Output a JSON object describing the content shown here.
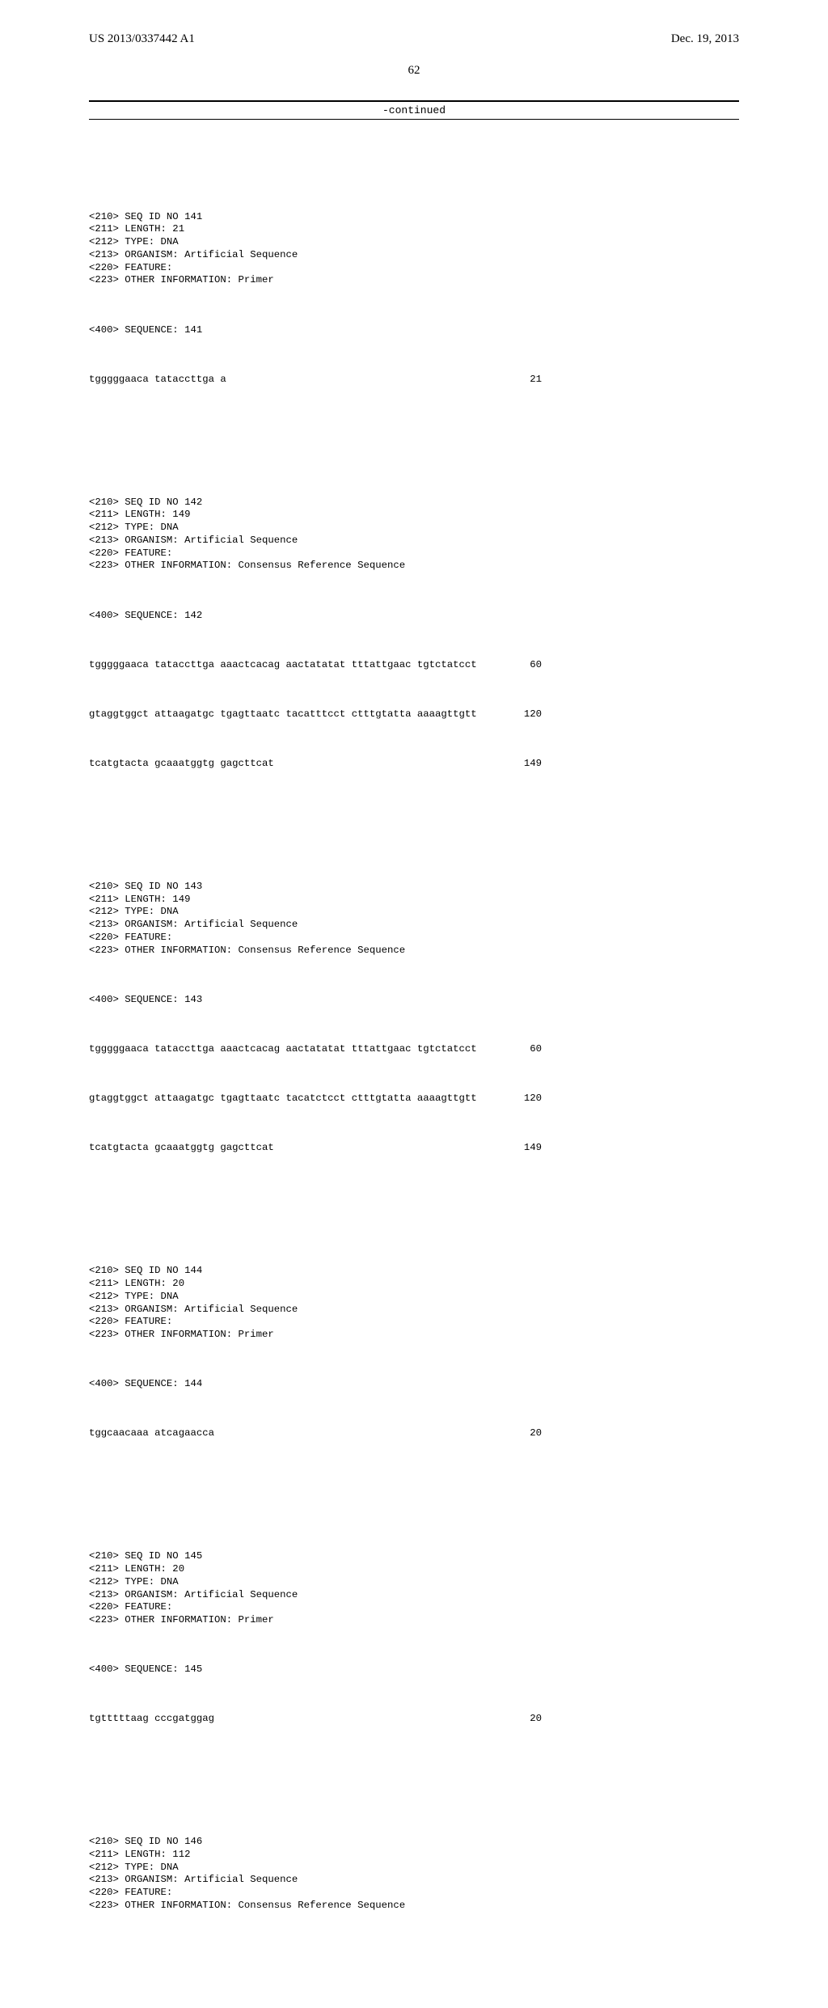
{
  "header": {
    "left": "US 2013/0337442 A1",
    "right": "Dec. 19, 2013"
  },
  "page_number": "62",
  "continued_label": "-continued",
  "entries": [
    {
      "headers": [
        "<210> SEQ ID NO 141",
        "<211> LENGTH: 21",
        "<212> TYPE: DNA",
        "<213> ORGANISM: Artificial Sequence",
        "<220> FEATURE:",
        "<223> OTHER INFORMATION: Primer"
      ],
      "seq_label": "<400> SEQUENCE: 141",
      "lines": [
        {
          "seq": "tgggggaaca tataccttga a",
          "pos": "21"
        }
      ]
    },
    {
      "headers": [
        "<210> SEQ ID NO 142",
        "<211> LENGTH: 149",
        "<212> TYPE: DNA",
        "<213> ORGANISM: Artificial Sequence",
        "<220> FEATURE:",
        "<223> OTHER INFORMATION: Consensus Reference Sequence"
      ],
      "seq_label": "<400> SEQUENCE: 142",
      "lines": [
        {
          "seq": "tgggggaaca tataccttga aaactcacag aactatatat tttattgaac tgtctatcct",
          "pos": "60"
        },
        {
          "seq": "gtaggtggct attaagatgc tgagttaatc tacatttcct ctttgtatta aaaagttgtt",
          "pos": "120"
        },
        {
          "seq": "tcatgtacta gcaaatggtg gagcttcat",
          "pos": "149"
        }
      ]
    },
    {
      "headers": [
        "<210> SEQ ID NO 143",
        "<211> LENGTH: 149",
        "<212> TYPE: DNA",
        "<213> ORGANISM: Artificial Sequence",
        "<220> FEATURE:",
        "<223> OTHER INFORMATION: Consensus Reference Sequence"
      ],
      "seq_label": "<400> SEQUENCE: 143",
      "lines": [
        {
          "seq": "tgggggaaca tataccttga aaactcacag aactatatat tttattgaac tgtctatcct",
          "pos": "60"
        },
        {
          "seq": "gtaggtggct attaagatgc tgagttaatc tacatctcct ctttgtatta aaaagttgtt",
          "pos": "120"
        },
        {
          "seq": "tcatgtacta gcaaatggtg gagcttcat",
          "pos": "149"
        }
      ]
    },
    {
      "headers": [
        "<210> SEQ ID NO 144",
        "<211> LENGTH: 20",
        "<212> TYPE: DNA",
        "<213> ORGANISM: Artificial Sequence",
        "<220> FEATURE:",
        "<223> OTHER INFORMATION: Primer"
      ],
      "seq_label": "<400> SEQUENCE: 144",
      "lines": [
        {
          "seq": "tggcaacaaa atcagaacca",
          "pos": "20"
        }
      ]
    },
    {
      "headers": [
        "<210> SEQ ID NO 145",
        "<211> LENGTH: 20",
        "<212> TYPE: DNA",
        "<213> ORGANISM: Artificial Sequence",
        "<220> FEATURE:",
        "<223> OTHER INFORMATION: Primer"
      ],
      "seq_label": "<400> SEQUENCE: 145",
      "lines": [
        {
          "seq": "tgtttttaag cccgatggag",
          "pos": "20"
        }
      ]
    },
    {
      "headers": [
        "<210> SEQ ID NO 146",
        "<211> LENGTH: 112",
        "<212> TYPE: DNA",
        "<213> ORGANISM: Artificial Sequence",
        "<220> FEATURE:",
        "<223> OTHER INFORMATION: Consensus Reference Sequence"
      ],
      "seq_label": "",
      "lines": []
    }
  ]
}
